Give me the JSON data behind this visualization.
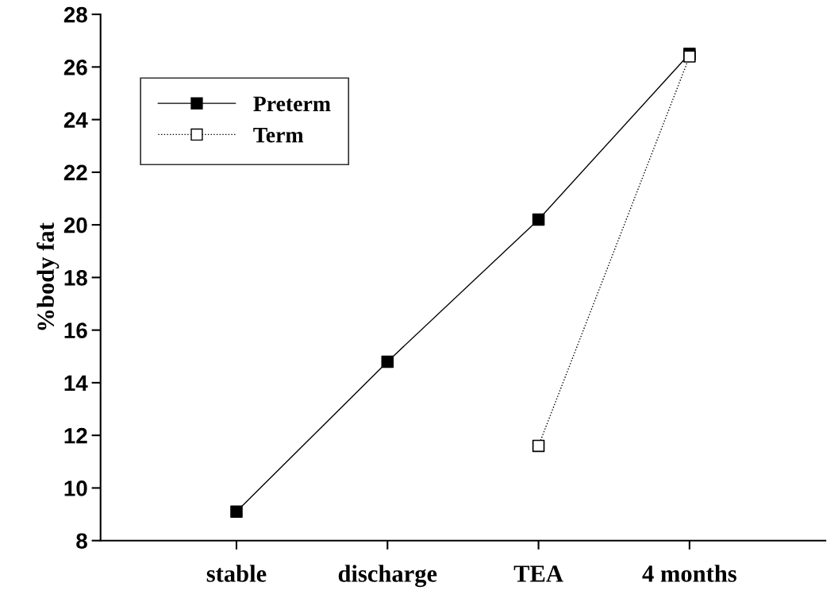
{
  "chart_data": {
    "type": "line",
    "ylabel": "%body fat",
    "categories": [
      "stable",
      "discharge",
      "TEA",
      "4 months"
    ],
    "series": [
      {
        "name": "Preterm",
        "color": "#000000",
        "values": [
          9.1,
          14.8,
          20.2,
          26.5
        ],
        "line_style": "solid"
      },
      {
        "name": "Term",
        "color": "#000000",
        "values": [
          null,
          null,
          11.6,
          26.4
        ],
        "line_style": "dotted"
      }
    ],
    "ylim": [
      8,
      28
    ],
    "yticks": [
      8,
      10,
      12,
      14,
      16,
      18,
      20,
      22,
      24,
      26,
      28
    ],
    "marker": "square",
    "legend": "top left",
    "grid": false
  }
}
